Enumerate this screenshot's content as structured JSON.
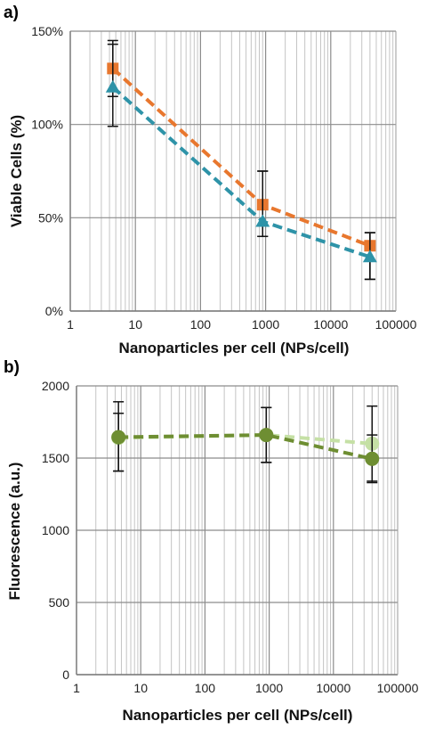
{
  "chart_data": [
    {
      "panel_label": "a)",
      "type": "line",
      "x_scale": "log",
      "xlim": [
        1,
        100000
      ],
      "ylim": [
        0,
        150
      ],
      "x_ticks": [
        "1",
        "10",
        "100",
        "1000",
        "10000",
        "100000"
      ],
      "y_ticks": [
        "0%",
        "50%",
        "100%",
        "150%"
      ],
      "xlabel": "Nanoparticles per cell (NPs/cell)",
      "ylabel": "Viable Cells (%)",
      "grid": true,
      "series": [
        {
          "color": "#E8772E",
          "marker": "square",
          "line_style": "dashed",
          "x": [
            4.5,
            900,
            40000
          ],
          "y": [
            130,
            57,
            35
          ],
          "error_low": [
            115,
            40,
            17
          ],
          "error_high": [
            145,
            75,
            42
          ]
        },
        {
          "color": "#2E93A8",
          "marker": "triangle",
          "line_style": "dashed",
          "x": [
            4.5,
            900,
            40000
          ],
          "y": [
            120,
            48,
            29
          ],
          "error_low": [
            99,
            40,
            17
          ],
          "error_high": [
            143,
            75,
            42
          ]
        }
      ]
    },
    {
      "panel_label": "b)",
      "type": "line",
      "x_scale": "log",
      "xlim": [
        1,
        100000
      ],
      "ylim": [
        0,
        2000
      ],
      "x_ticks": [
        "1",
        "10",
        "100",
        "1000",
        "10000",
        "100000"
      ],
      "y_ticks": [
        "0",
        "500",
        "1000",
        "1500",
        "2000"
      ],
      "xlabel": "Nanoparticles per cell (NPs/cell)",
      "ylabel": "Fluorescence (a.u.)",
      "grid": true,
      "series": [
        {
          "color": "#C5E0A5",
          "marker": "circle",
          "line_style": "dashed",
          "x": [
            4.5,
            900,
            40000
          ],
          "y": [
            1640,
            1660,
            1600
          ],
          "error_low": [
            1410,
            1470,
            1340
          ],
          "error_high": [
            1890,
            1850,
            1860
          ]
        },
        {
          "color": "#6E8E32",
          "marker": "circle",
          "line_style": "dashed",
          "x": [
            4.5,
            900,
            40000
          ],
          "y": [
            1645,
            1660,
            1495
          ],
          "error_low": [
            1410,
            1470,
            1330
          ],
          "error_high": [
            1810,
            1850,
            1660
          ]
        }
      ]
    }
  ]
}
